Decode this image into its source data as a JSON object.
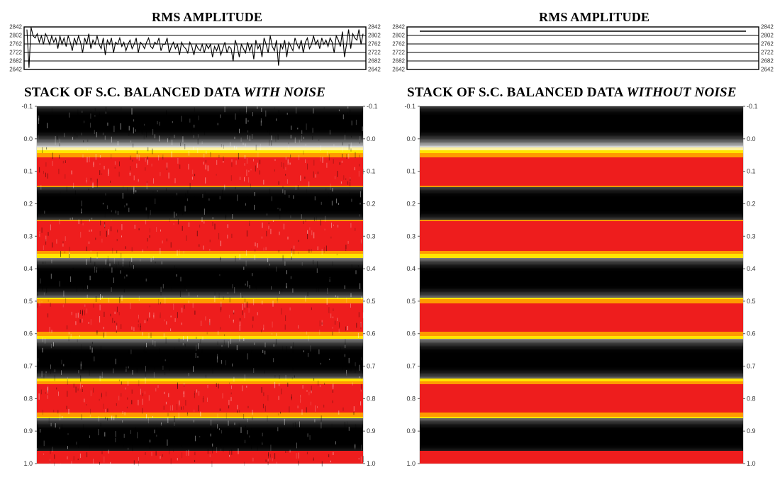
{
  "panels": [
    {
      "rms_title": "RMS AMPLITUDE",
      "stack_title_prefix": "STACK OF S.C. BALANCED DATA",
      "stack_title_emphasis": "WITH NOISE"
    },
    {
      "rms_title": "RMS AMPLITUDE",
      "stack_title_prefix": "STACK OF S.C. BALANCED DATA",
      "stack_title_emphasis": "WITHOUT NOISE"
    }
  ],
  "chart_data": [
    {
      "type": "line",
      "title": "RMS AMPLITUDE",
      "ylim": [
        2642,
        2842
      ],
      "y_ticks": [
        2842,
        2802,
        2762,
        2722,
        2682,
        2642
      ],
      "grid": true,
      "series": [
        {
          "values": [
            2830,
            2650,
            2840,
            2800,
            2790,
            2810,
            2770,
            2800,
            2760,
            2810,
            2790,
            2760,
            2800,
            2770,
            2790,
            2740,
            2800,
            2760,
            2790,
            2750,
            2800,
            2770,
            2730,
            2790,
            2760,
            2800,
            2770,
            2720,
            2790,
            2760,
            2810,
            2740,
            2780,
            2760,
            2800,
            2760,
            2740,
            2790,
            2710,
            2780,
            2760,
            2790,
            2720,
            2770,
            2760,
            2790,
            2750,
            2770,
            2730,
            2760,
            2780,
            2740,
            2760,
            2790,
            2720,
            2770,
            2760,
            2740,
            2770,
            2790,
            2750,
            2740,
            2770,
            2760,
            2790,
            2730,
            2760,
            2760,
            2790,
            2720,
            2750,
            2770,
            2740,
            2760,
            2710,
            2770,
            2750,
            2740,
            2720,
            2770,
            2750,
            2710,
            2760,
            2740,
            2730,
            2760,
            2720,
            2760,
            2740,
            2760,
            2700,
            2750,
            2730,
            2760,
            2710,
            2740,
            2770,
            2720,
            2750,
            2740,
            2680,
            2780,
            2750,
            2700,
            2760,
            2740,
            2720,
            2770,
            2730,
            2760,
            2690,
            2780,
            2740,
            2760,
            2700,
            2790,
            2760,
            2720,
            2800,
            2750,
            2730,
            2780,
            2660,
            2760,
            2740,
            2780,
            2700,
            2770,
            2750,
            2730,
            2790,
            2760,
            2740,
            2780,
            2720,
            2770,
            2790,
            2740,
            2760,
            2800,
            2760,
            2780,
            2740,
            2790,
            2760,
            2780,
            2750,
            2790,
            2770,
            2720,
            2800,
            2780,
            2750,
            2820,
            2700,
            2760,
            2830,
            2740,
            2810,
            2790,
            2780,
            2830,
            2760,
            2810
          ]
        }
      ]
    },
    {
      "type": "line",
      "title": "RMS AMPLITUDE",
      "ylim": [
        2642,
        2842
      ],
      "y_ticks": [
        2842,
        2802,
        2762,
        2722,
        2682,
        2642
      ],
      "grid": true,
      "series": [
        {
          "values": [
            2822,
            2822
          ]
        }
      ]
    },
    {
      "type": "heatmap",
      "title": "STACK OF S.C. BALANCED DATA WITH NOISE",
      "ylim": [
        -0.1,
        1.0
      ],
      "y_ticks": [
        "-0.1",
        "0.0",
        "0.1",
        "0.2",
        "0.3",
        "0.4",
        "0.5",
        "0.6",
        "0.7",
        "0.8",
        "0.9",
        "1.0"
      ],
      "red_band_centers": [
        0.1,
        0.3,
        0.55,
        0.8,
        1.0
      ],
      "black_band_centers": [
        -0.05,
        0.2,
        0.43,
        0.68,
        0.92
      ],
      "noise": true
    },
    {
      "type": "heatmap",
      "title": "STACK OF S.C. BALANCED DATA WITHOUT NOISE",
      "ylim": [
        -0.1,
        1.0
      ],
      "y_ticks": [
        "-0.1",
        "0.0",
        "0.1",
        "0.2",
        "0.3",
        "0.4",
        "0.5",
        "0.6",
        "0.7",
        "0.8",
        "0.9",
        "1.0"
      ],
      "red_band_centers": [
        0.1,
        0.3,
        0.55,
        0.8,
        1.0
      ],
      "black_band_centers": [
        -0.05,
        0.2,
        0.43,
        0.68,
        0.92
      ],
      "noise": false
    }
  ],
  "colors": {
    "red": "#ee1d1d",
    "yellow": "#ffe600",
    "black": "#000000",
    "background": "#ffffff"
  }
}
